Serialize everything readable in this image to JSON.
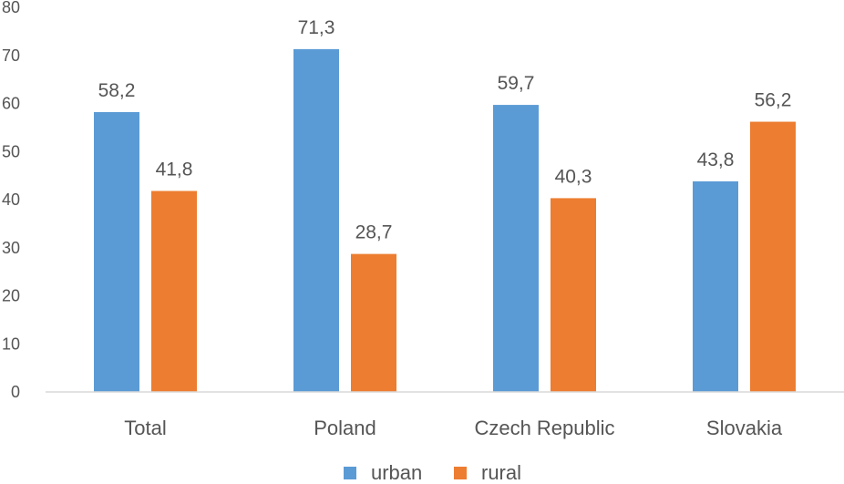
{
  "chart_data": {
    "type": "bar",
    "categories": [
      "Total",
      "Poland",
      "Czech Republic",
      "Slovakia"
    ],
    "series": [
      {
        "name": "urban",
        "values": [
          58.2,
          71.3,
          59.7,
          43.8
        ],
        "labels": [
          "58,2",
          "71,3",
          "59,7",
          "43,8"
        ]
      },
      {
        "name": "rural",
        "values": [
          41.8,
          28.7,
          40.3,
          56.2
        ],
        "labels": [
          "41,8",
          "28,7",
          "40,3",
          "56,2"
        ]
      }
    ],
    "ylim": [
      0,
      80
    ],
    "yticks": [
      0,
      10,
      20,
      30,
      40,
      50,
      60,
      70,
      80
    ],
    "grid": false,
    "legend_position": "bottom",
    "colors": {
      "urban": "#5B9BD5",
      "rural": "#ED7D31",
      "axis": "#D9D9D9",
      "text": "#555555"
    }
  }
}
